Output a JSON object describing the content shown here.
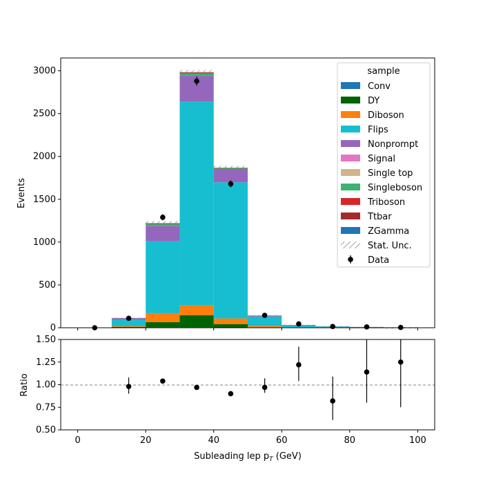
{
  "chart_data": {
    "type": "bar",
    "subtype": "stacked-histogram-with-ratio",
    "x_bin_edges": [
      0,
      10,
      20,
      30,
      40,
      50,
      60,
      70,
      80,
      90,
      100
    ],
    "xlabel": "Subleading lep p",
    "xlabel_sub": "T",
    "xlabel_unit": " (GeV)",
    "xlim": [
      -5,
      105
    ],
    "x_ticks": [
      0,
      20,
      40,
      60,
      80,
      100
    ],
    "main": {
      "ylabel": "Events",
      "ylim": [
        0,
        3150
      ],
      "y_ticks": [
        0,
        500,
        1000,
        1500,
        2000,
        2500,
        3000
      ],
      "stack_order": [
        "Triboson",
        "ZGamma",
        "Signal",
        "Single top",
        "Conv",
        "DY",
        "Diboson",
        "Flips",
        "Nonprompt",
        "Singleboson",
        "Ttbar"
      ],
      "series": [
        {
          "name": "Conv",
          "color": "#1f77b4",
          "values": [
            0,
            2,
            5,
            5,
            3,
            1,
            0,
            0,
            0,
            0
          ]
        },
        {
          "name": "DY",
          "color": "#006400",
          "values": [
            0,
            8,
            60,
            140,
            40,
            5,
            1,
            1,
            0,
            0
          ]
        },
        {
          "name": "Diboson",
          "color": "#ff7f0e",
          "values": [
            0,
            10,
            105,
            115,
            65,
            15,
            6,
            4,
            2,
            1
          ]
        },
        {
          "name": "Flips",
          "color": "#17becf",
          "values": [
            0,
            70,
            840,
            2380,
            1590,
            110,
            22,
            10,
            6,
            3
          ]
        },
        {
          "name": "Nonprompt",
          "color": "#9467bd",
          "values": [
            0,
            22,
            180,
            300,
            155,
            10,
            4,
            2,
            1,
            1
          ]
        },
        {
          "name": "Signal",
          "color": "#e377c2",
          "values": [
            0,
            0,
            0,
            0,
            0,
            0,
            0,
            0,
            0,
            0
          ]
        },
        {
          "name": "Single top",
          "color": "#d2b48c",
          "values": [
            0,
            0,
            0,
            0,
            0,
            0,
            0,
            0,
            0,
            0
          ]
        },
        {
          "name": "Singleboson",
          "color": "#3cb371",
          "values": [
            0,
            1,
            22,
            30,
            10,
            1,
            0,
            0,
            0,
            0
          ]
        },
        {
          "name": "Triboson",
          "color": "#d62728",
          "values": [
            0,
            0,
            0,
            0,
            0,
            0,
            0,
            0,
            0,
            0
          ]
        },
        {
          "name": "Ttbar",
          "color": "#a52a2a",
          "values": [
            0,
            1,
            8,
            12,
            5,
            1,
            0,
            0,
            0,
            0
          ]
        },
        {
          "name": "ZGamma",
          "color": "#1f77b4",
          "values": [
            0,
            0,
            0,
            0,
            0,
            0,
            0,
            0,
            0,
            0
          ]
        }
      ],
      "stat_unc": [
        0,
        4,
        25,
        28,
        22,
        5,
        2,
        2,
        1,
        1
      ],
      "data": {
        "x": [
          5,
          15,
          25,
          35,
          45,
          55,
          65,
          75,
          85,
          95
        ],
        "y": [
          0,
          110,
          1290,
          2880,
          1680,
          145,
          45,
          15,
          10,
          4
        ],
        "yerr": [
          0,
          10,
          36,
          54,
          41,
          12,
          7,
          4,
          3,
          2
        ]
      }
    },
    "legend": {
      "title": "sample",
      "position": "top-right",
      "entries": [
        "Conv",
        "DY",
        "Diboson",
        "Flips",
        "Nonprompt",
        "Signal",
        "Single top",
        "Singleboson",
        "Triboson",
        "Ttbar",
        "ZGamma",
        "Stat. Unc.",
        "Data"
      ]
    },
    "ratio": {
      "ylabel": "Ratio",
      "ylim": [
        0.5,
        1.5
      ],
      "y_ticks": [
        "0.50",
        "0.75",
        "1.00",
        "1.25",
        "1.50"
      ],
      "reference_line": 1.0,
      "x": [
        15,
        25,
        35,
        45,
        55,
        65,
        75,
        85,
        95
      ],
      "y": [
        0.98,
        1.04,
        0.97,
        0.9,
        0.97,
        1.22,
        0.82,
        1.14,
        1.25
      ],
      "yerr_low": [
        0.08,
        0.02,
        0.01,
        0.01,
        0.06,
        0.18,
        0.21,
        0.34,
        0.5
      ],
      "yerr_high": [
        0.1,
        0.02,
        0.01,
        0.01,
        0.1,
        0.2,
        0.27,
        0.4,
        0.5
      ]
    }
  }
}
